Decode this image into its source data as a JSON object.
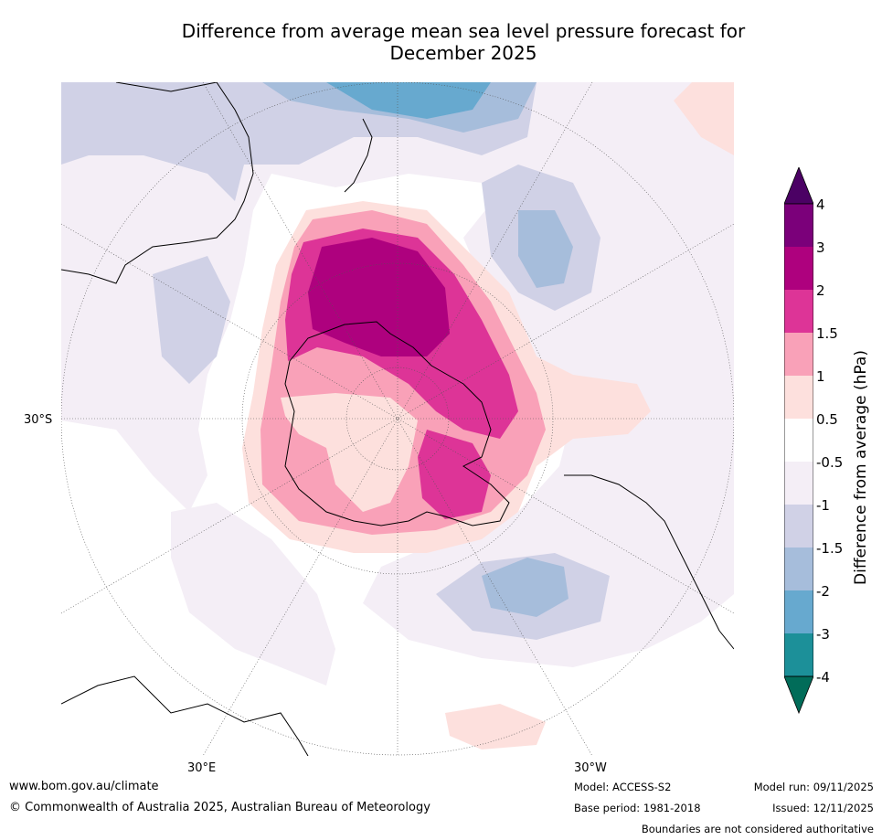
{
  "title": {
    "line1": "Difference from average mean sea level pressure forecast for",
    "line2": "December 2025"
  },
  "map": {
    "projection": "south-polar-stereographic",
    "labels": {
      "lat_30s": "30°S",
      "lon_30e": "30°E",
      "lon_30w": "30°W"
    }
  },
  "colorbar": {
    "title": "Difference from average (hPa)",
    "tick_labels": [
      "4",
      "3",
      "2",
      "1.5",
      "1",
      "0.5",
      "-0.5",
      "-1",
      "-1.5",
      "-2",
      "-3",
      "-4"
    ],
    "colors": {
      "gt4": "#4b0164",
      "3_4": "#7b007a",
      "2_3": "#ae017e",
      "1p5_2": "#dd3497",
      "1_1p5": "#f9a1b8",
      "0p5_1": "#fde0dd",
      "neutral": "#ffffff",
      "m1_m0p5": "#f4eef6",
      "m1p5_m1": "#d0d1e6",
      "m2_m1p5": "#a6bddb",
      "m3_m2": "#67a9cf",
      "m4_m3": "#1c9099",
      "lt_m4": "#016c59"
    }
  },
  "footer": {
    "website": "www.bom.gov.au/climate",
    "copyright": "© Commonwealth of Australia 2025, Australian Bureau of Meteorology",
    "model": "Model: ACCESS-S2",
    "base_period": "Base period: 1981-2018",
    "model_run": "Model run: 09/11/2025",
    "issued": "Issued: 12/11/2025",
    "disclaimer": "Boundaries are not considered authoritative"
  }
}
